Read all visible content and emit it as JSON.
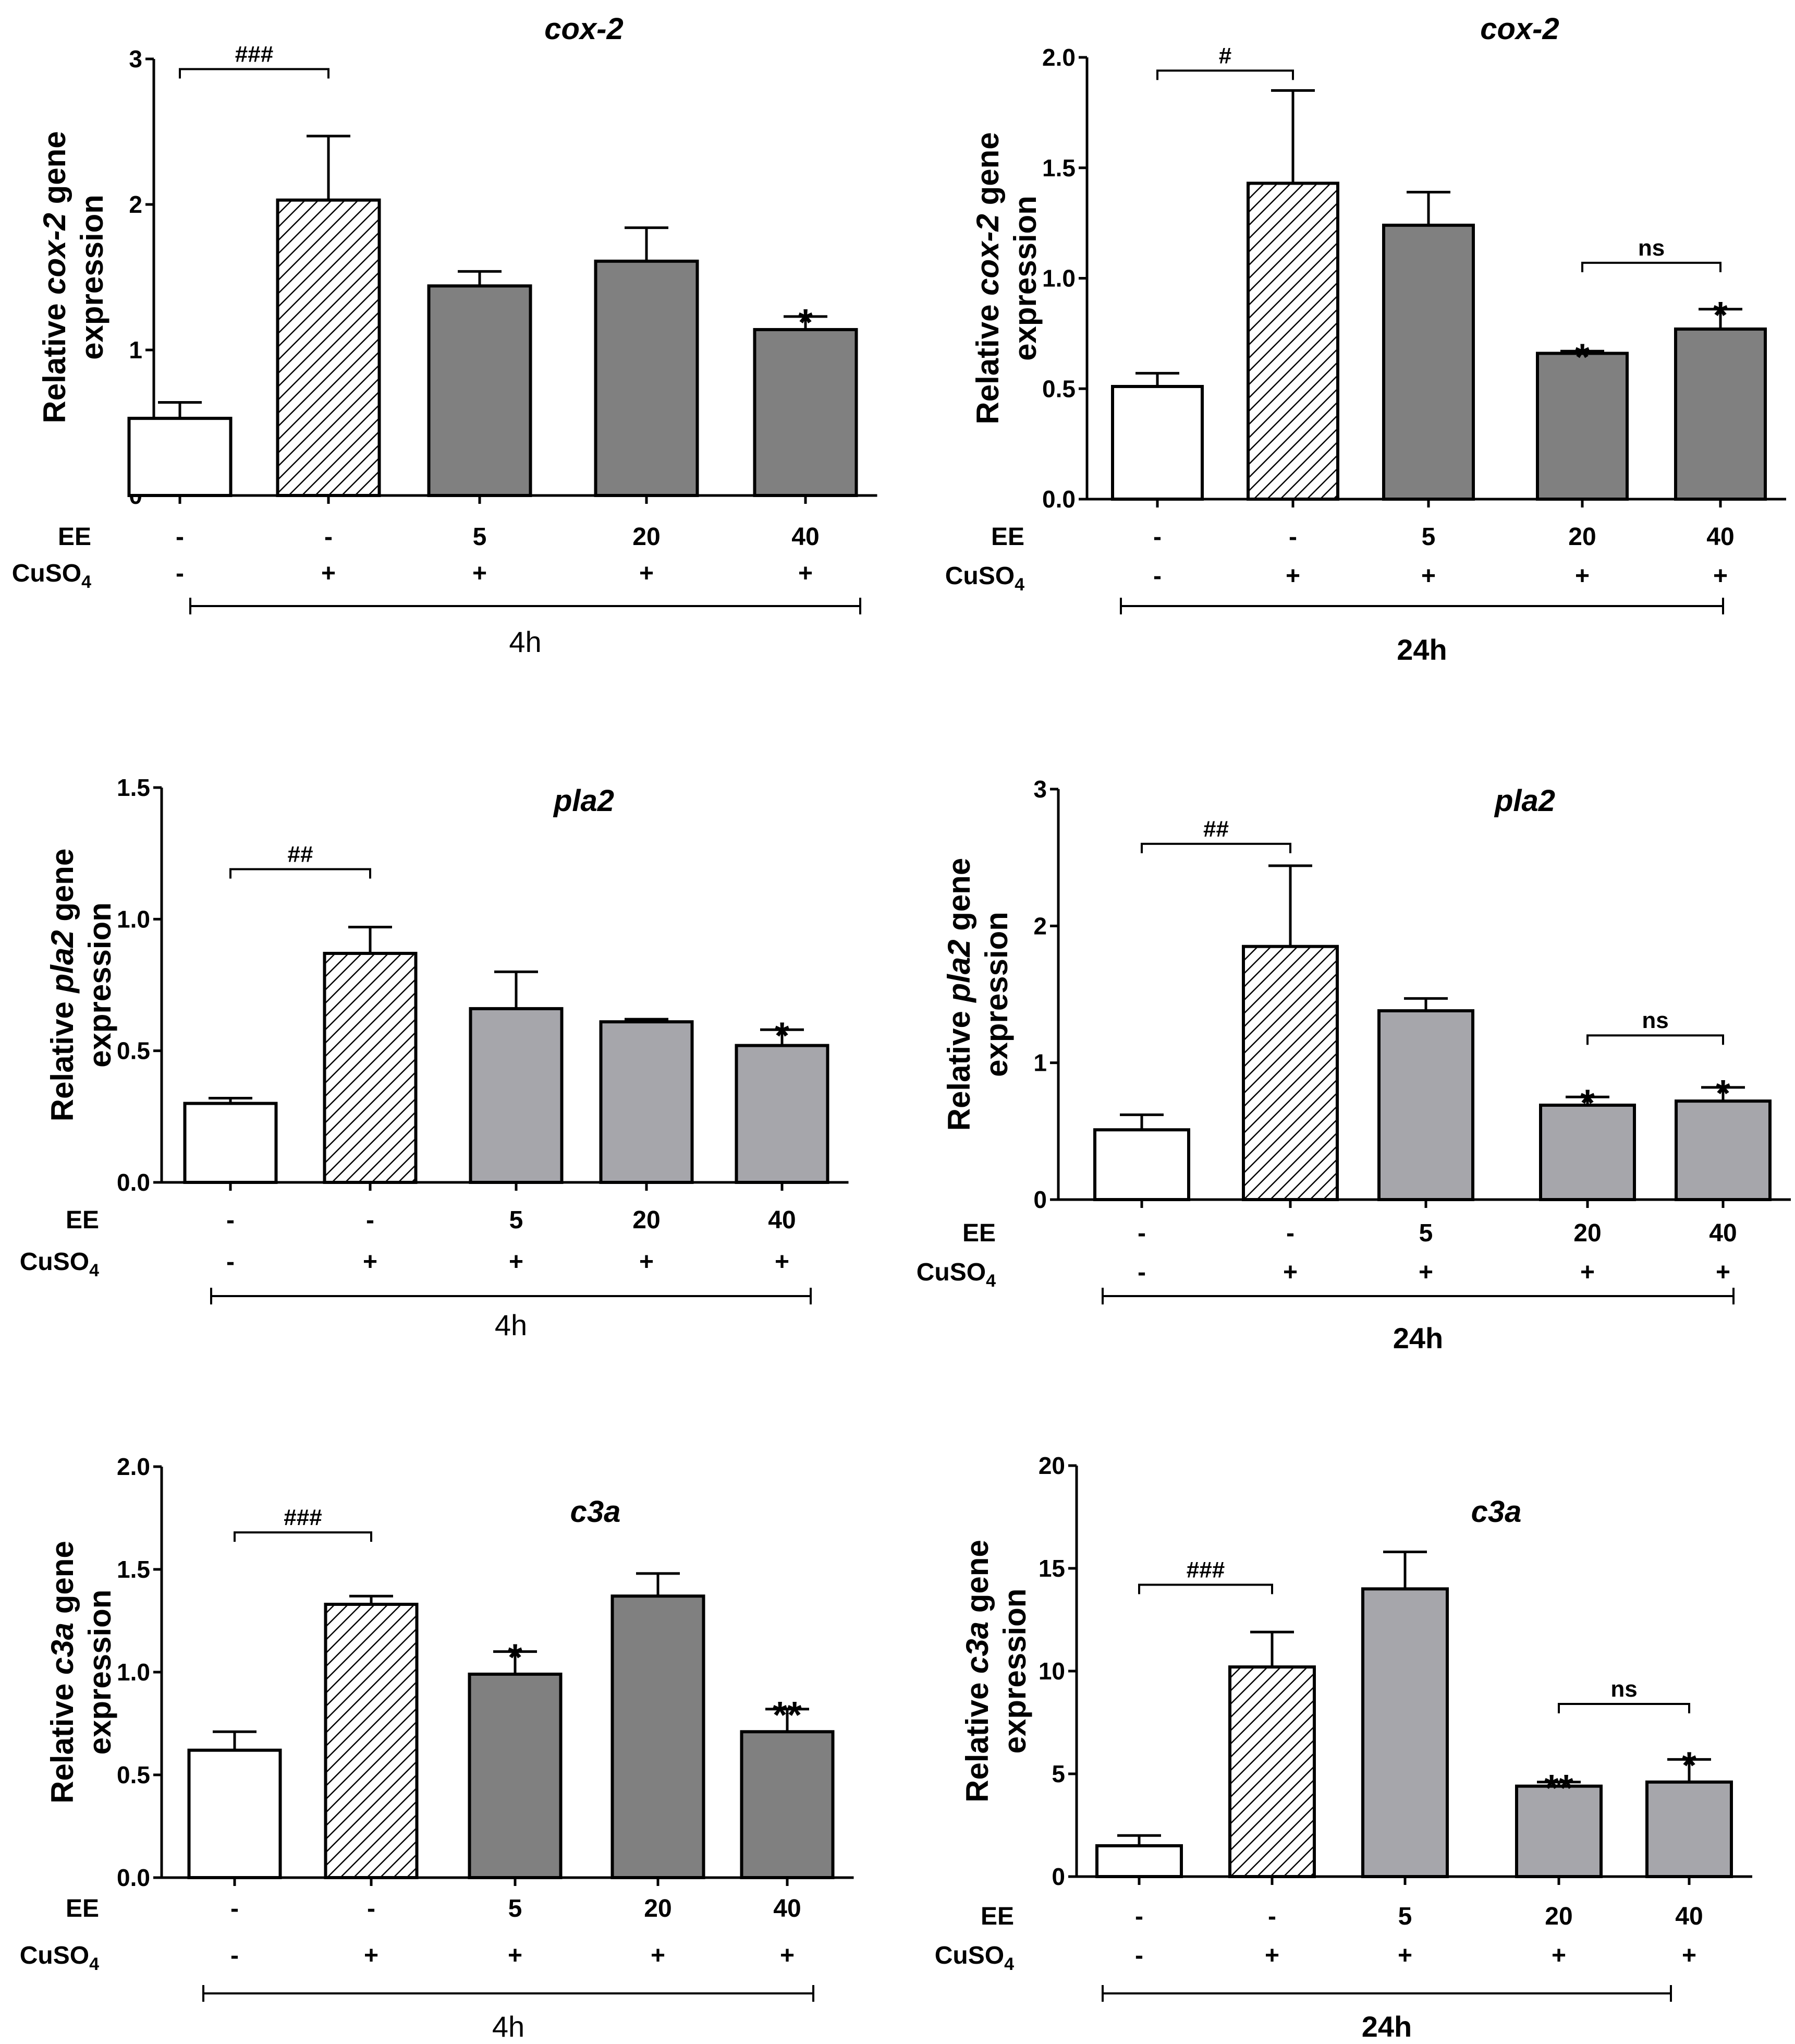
{
  "figure": {
    "shared": {
      "ee_label": "EE",
      "cuso4_label": "CuSO",
      "cuso4_sub": "4",
      "ee_values": [
        "-",
        "-",
        "5",
        "20",
        "40"
      ],
      "cuso4_values": [
        "-",
        "+",
        "+",
        "+",
        "+"
      ]
    }
  },
  "colors": {
    "control": "#ffffff",
    "cuso4_hatched": "#ffffff",
    "ee_dark": "#808080",
    "ee_light": "#a6a6ab",
    "axis": "#000000"
  },
  "chart_data": [
    {
      "id": "cox2-4h",
      "type": "bar",
      "title": "cox-2",
      "ylabel_pre": "Relative ",
      "ylabel_gene": "cox-2",
      "ylabel_post": " gene",
      "ylabel_line2": "expression",
      "ylim": [
        0,
        3
      ],
      "yticks": [
        "0",
        "1",
        "2",
        "3"
      ],
      "ytick_values": [
        0,
        1,
        2,
        3
      ],
      "categories": [
        "control",
        "CuSO4",
        "EE 5",
        "EE 20",
        "EE 40"
      ],
      "values": [
        0.53,
        2.03,
        1.44,
        1.61,
        1.14
      ],
      "errors": [
        0.11,
        0.44,
        0.1,
        0.23,
        0.09
      ],
      "fills": [
        "white",
        "hatch",
        "dark",
        "dark",
        "dark"
      ],
      "annotations": [
        {
          "kind": "bracket",
          "from": 0,
          "to": 1,
          "y": 2.93,
          "text": "###"
        },
        {
          "kind": "mark",
          "bar": 4,
          "text": "*"
        }
      ],
      "timepoint": "4h",
      "timepoint_bold": false
    },
    {
      "id": "cox2-24h",
      "type": "bar",
      "title": "cox-2",
      "ylabel_pre": "Relative ",
      "ylabel_gene": "cox-2",
      "ylabel_post": " gene",
      "ylabel_line2": "expression",
      "ylim": [
        0,
        2
      ],
      "yticks": [
        "0.0",
        "0.5",
        "1.0",
        "1.5",
        "2.0"
      ],
      "ytick_values": [
        0,
        0.5,
        1,
        1.5,
        2
      ],
      "categories": [
        "control",
        "CuSO4",
        "EE 5",
        "EE 20",
        "EE 40"
      ],
      "values": [
        0.51,
        1.43,
        1.24,
        0.66,
        0.77
      ],
      "errors": [
        0.06,
        0.42,
        0.15,
        0.01,
        0.09
      ],
      "fills": [
        "white",
        "hatch",
        "dark",
        "dark",
        "dark"
      ],
      "annotations": [
        {
          "kind": "bracket",
          "from": 0,
          "to": 1,
          "y": 1.94,
          "text": "#"
        },
        {
          "kind": "bracket",
          "from": 3,
          "to": 4,
          "y": 1.07,
          "text": "ns"
        },
        {
          "kind": "mark",
          "bar": 3,
          "text": "*"
        },
        {
          "kind": "mark",
          "bar": 4,
          "text": "*"
        }
      ],
      "timepoint": "24h",
      "timepoint_bold": true
    },
    {
      "id": "pla2-4h",
      "type": "bar",
      "title": "pla2",
      "ylabel_pre": "Relative ",
      "ylabel_gene": "pla2",
      "ylabel_post": " gene",
      "ylabel_line2": "expression",
      "ylim": [
        0,
        1.5
      ],
      "yticks": [
        "0.0",
        "0.5",
        "1.0",
        "1.5"
      ],
      "ytick_values": [
        0,
        0.5,
        1,
        1.5
      ],
      "categories": [
        "control",
        "CuSO4",
        "EE 5",
        "EE 20",
        "EE 40"
      ],
      "values": [
        0.3,
        0.87,
        0.66,
        0.61,
        0.52
      ],
      "errors": [
        0.02,
        0.1,
        0.14,
        0.01,
        0.06
      ],
      "fills": [
        "white",
        "hatch",
        "light",
        "light",
        "light"
      ],
      "annotations": [
        {
          "kind": "bracket",
          "from": 0,
          "to": 1,
          "y": 1.19,
          "text": "##"
        },
        {
          "kind": "mark",
          "bar": 4,
          "text": "*"
        }
      ],
      "timepoint": "4h",
      "timepoint_bold": false
    },
    {
      "id": "pla2-24h",
      "type": "bar",
      "title": "pla2",
      "ylabel_pre": "Relative ",
      "ylabel_gene": "pla2",
      "ylabel_post": " gene",
      "ylabel_line2": "expression",
      "ylim": [
        0,
        3
      ],
      "yticks": [
        "0",
        "1",
        "2",
        "3"
      ],
      "ytick_values": [
        0,
        1,
        2,
        3
      ],
      "categories": [
        "control",
        "CuSO4",
        "EE 5",
        "EE 20",
        "EE 40"
      ],
      "values": [
        0.51,
        1.85,
        1.38,
        0.69,
        0.72
      ],
      "errors": [
        0.11,
        0.59,
        0.09,
        0.06,
        0.1
      ],
      "fills": [
        "white",
        "hatch",
        "light",
        "light",
        "light"
      ],
      "annotations": [
        {
          "kind": "bracket",
          "from": 0,
          "to": 1,
          "y": 2.6,
          "text": "##"
        },
        {
          "kind": "bracket",
          "from": 3,
          "to": 4,
          "y": 1.2,
          "text": "ns"
        },
        {
          "kind": "mark",
          "bar": 3,
          "text": "*"
        },
        {
          "kind": "mark",
          "bar": 4,
          "text": "*"
        }
      ],
      "timepoint": "24h",
      "timepoint_bold": true
    },
    {
      "id": "c3a-4h",
      "type": "bar",
      "title": "c3a",
      "ylabel_pre": "Relative ",
      "ylabel_gene": "c3a",
      "ylabel_post": " gene",
      "ylabel_line2": "expression",
      "ylim": [
        0,
        2
      ],
      "yticks": [
        "0.0",
        "0.5",
        "1.0",
        "1.5",
        "2.0"
      ],
      "ytick_values": [
        0,
        0.5,
        1,
        1.5,
        2
      ],
      "categories": [
        "control",
        "CuSO4",
        "EE 5",
        "EE 20",
        "EE 40"
      ],
      "values": [
        0.62,
        1.33,
        0.99,
        1.37,
        0.71
      ],
      "errors": [
        0.09,
        0.04,
        0.11,
        0.11,
        0.11
      ],
      "fills": [
        "white",
        "hatch",
        "dark",
        "dark",
        "dark"
      ],
      "annotations": [
        {
          "kind": "bracket",
          "from": 0,
          "to": 1,
          "y": 1.68,
          "text": "###"
        },
        {
          "kind": "mark",
          "bar": 2,
          "text": "*"
        },
        {
          "kind": "mark",
          "bar": 4,
          "text": "**"
        }
      ],
      "timepoint": "4h",
      "timepoint_bold": false
    },
    {
      "id": "c3a-24h",
      "type": "bar",
      "title": "c3a",
      "ylabel_pre": "Relative ",
      "ylabel_gene": "c3a",
      "ylabel_post": " gene",
      "ylabel_line2": "expression",
      "ylim": [
        0,
        20
      ],
      "yticks": [
        "0",
        "5",
        "10",
        "15",
        "20"
      ],
      "ytick_values": [
        0,
        5,
        10,
        15,
        20
      ],
      "categories": [
        "control",
        "CuSO4",
        "EE 5",
        "EE 20",
        "EE 40"
      ],
      "values": [
        1.5,
        10.2,
        14,
        4.4,
        4.6
      ],
      "errors": [
        0.5,
        1.7,
        1.8,
        0.2,
        1.1
      ],
      "fills": [
        "white",
        "hatch",
        "light",
        "light",
        "light"
      ],
      "annotations": [
        {
          "kind": "bracket",
          "from": 0,
          "to": 1,
          "y": 14.2,
          "text": "###"
        },
        {
          "kind": "bracket",
          "from": 3,
          "to": 4,
          "y": 8.4,
          "text": "ns"
        },
        {
          "kind": "mark",
          "bar": 3,
          "text": "**"
        },
        {
          "kind": "mark",
          "bar": 4,
          "text": "*"
        }
      ],
      "timepoint": "24h",
      "timepoint_bold": true
    }
  ]
}
